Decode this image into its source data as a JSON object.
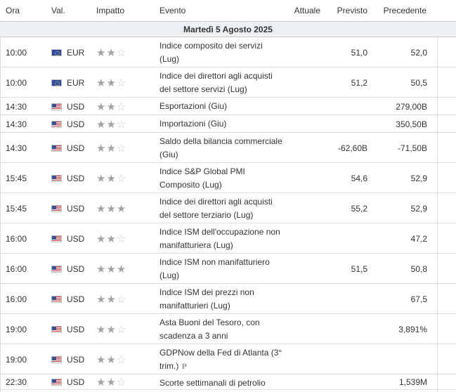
{
  "header": {
    "time": "Ora",
    "currency": "Val.",
    "impact": "Impatto",
    "event": "Evento",
    "actual": "Attuale",
    "forecast": "Previsto",
    "previous": "Precedente"
  },
  "date_label": "Martedì 5 Agosto 2025",
  "rows": [
    {
      "time": "10:00",
      "flag": "eu-flag-icon",
      "currency": "EUR",
      "impact": 2,
      "event": "Indice composito dei servizi (Lug)",
      "actual": "",
      "forecast": "51,0",
      "previous": "52,0"
    },
    {
      "time": "10:00",
      "flag": "eu-flag-icon",
      "currency": "EUR",
      "impact": 2,
      "event": "Indice dei direttori agli acquisti del settore servizi (Lug)",
      "actual": "",
      "forecast": "51,2",
      "previous": "50,5"
    },
    {
      "time": "14:30",
      "flag": "us-flag-icon",
      "currency": "USD",
      "impact": 2,
      "event": "Esportazioni (Giu)",
      "actual": "",
      "forecast": "",
      "previous": "279,00B"
    },
    {
      "time": "14:30",
      "flag": "us-flag-icon",
      "currency": "USD",
      "impact": 2,
      "event": "Importazioni (Giu)",
      "actual": "",
      "forecast": "",
      "previous": "350,50B"
    },
    {
      "time": "14:30",
      "flag": "us-flag-icon",
      "currency": "USD",
      "impact": 2,
      "event": "Saldo della bilancia commerciale (Giu)",
      "actual": "",
      "forecast": "-62,60B",
      "previous": "-71,50B"
    },
    {
      "time": "15:45",
      "flag": "us-flag-icon",
      "currency": "USD",
      "impact": 2,
      "event": "Indice S&P Global PMI Composito (Lug)",
      "actual": "",
      "forecast": "54,6",
      "previous": "52,9"
    },
    {
      "time": "15:45",
      "flag": "us-flag-icon",
      "currency": "USD",
      "impact": 3,
      "event": "Indice dei direttori agli acquisti del settore terziario (Lug)",
      "actual": "",
      "forecast": "55,2",
      "previous": "52,9"
    },
    {
      "time": "16:00",
      "flag": "us-flag-icon",
      "currency": "USD",
      "impact": 2,
      "event": "Indice ISM dell'occupazione non manifatturiera (Lug)",
      "actual": "",
      "forecast": "",
      "previous": "47,2"
    },
    {
      "time": "16:00",
      "flag": "us-flag-icon",
      "currency": "USD",
      "impact": 3,
      "event": "Indice ISM non manifatturiero (Lug)",
      "actual": "",
      "forecast": "51,5",
      "previous": "50,8"
    },
    {
      "time": "16:00",
      "flag": "us-flag-icon",
      "currency": "USD",
      "impact": 2,
      "event": "Indice ISM dei prezzi non manifatturieri (Lug)",
      "actual": "",
      "forecast": "",
      "previous": "67,5"
    },
    {
      "time": "19:00",
      "flag": "us-flag-icon",
      "currency": "USD",
      "impact": 2,
      "event": "Asta Buoni del Tesoro, con scadenza a 3 anni",
      "actual": "",
      "forecast": "",
      "previous": "3,891%"
    },
    {
      "time": "19:00",
      "flag": "us-flag-icon",
      "currency": "USD",
      "impact": 2,
      "event": "GDPNow della Fed di Atlanta (3° trim.)",
      "prelim_badge": "P",
      "actual": "",
      "forecast": "",
      "previous": ""
    },
    {
      "time": "22:30",
      "flag": "us-flag-icon",
      "currency": "USD",
      "impact": 2,
      "event": "Scorte settimanali di petrolio",
      "actual": "",
      "forecast": "",
      "previous": "1,539M"
    }
  ]
}
